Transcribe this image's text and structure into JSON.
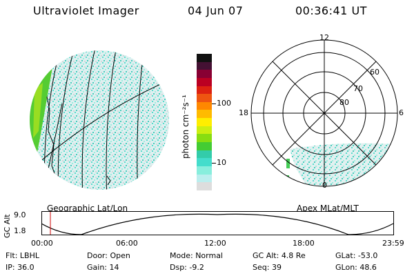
{
  "header": {
    "title": "Ultraviolet Imager",
    "date": "04 Jun 07",
    "time": "00:36:41 UT"
  },
  "left_panel": {
    "label": "Geographic Lat/Lon"
  },
  "right_panel": {
    "label": "Apex  MLat/MLT",
    "mlt_labels": [
      "12",
      "18",
      "6",
      "0"
    ],
    "mlat_labels": [
      "60",
      "70",
      "80"
    ]
  },
  "colorbar": {
    "unit_label": "photon cm⁻²s⁻¹",
    "ticks": [
      "100",
      "10"
    ],
    "colors": [
      "#111111",
      "#441133",
      "#880033",
      "#bb0022",
      "#dd2211",
      "#ee5511",
      "#ff8800",
      "#ffbb00",
      "#ffee00",
      "#ccee11",
      "#88dd11",
      "#44cc33",
      "#33ccaa",
      "#44ddcc",
      "#88eedd",
      "#bbeeee",
      "#dddddd"
    ]
  },
  "altitude_strip": {
    "axis_label": "GC Alt",
    "y_ticks": [
      "9.0",
      "1.8"
    ],
    "x_ticks": [
      "00:00",
      "06:00",
      "12:00",
      "18:00",
      "23:59"
    ]
  },
  "footer": {
    "row1": [
      {
        "label": "Flt:",
        "value": "LBHL"
      },
      {
        "label": "Door:",
        "value": "Open"
      },
      {
        "label": "Mode:",
        "value": "Normal"
      },
      {
        "label": "GC Alt:",
        "value": "4.8 Re"
      },
      {
        "label": "GLat:",
        "value": "-53.0"
      }
    ],
    "row2": [
      {
        "label": "IP:",
        "value": "36.0"
      },
      {
        "label": "Gain:",
        "value": "14"
      },
      {
        "label": "Dsp:",
        "value": "-9.2"
      },
      {
        "label": "Seq:",
        "value": "39"
      },
      {
        "label": "GLon:",
        "value": "48.6"
      }
    ]
  }
}
